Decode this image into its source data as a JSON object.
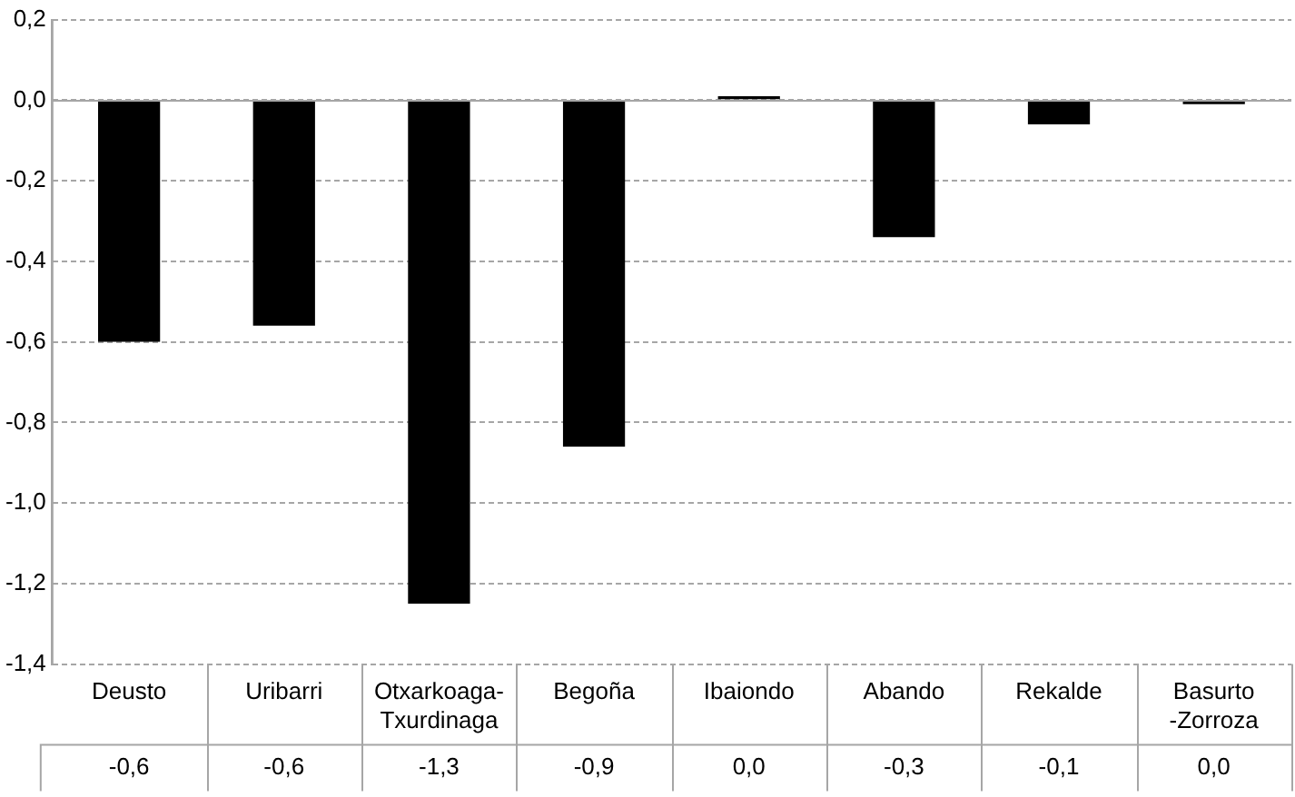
{
  "chart_data": {
    "type": "bar",
    "categories": [
      "Deusto",
      "Uribarri",
      "Otxarkoaga-Txurdinaga",
      "Begoña",
      "Ibaiondo",
      "Abando",
      "Rekalde",
      "Basurto -Zorroza"
    ],
    "values": [
      -0.6,
      -0.56,
      -1.25,
      -0.86,
      0.01,
      -0.34,
      -0.06,
      -0.01
    ],
    "value_labels": [
      "-0,6",
      "-0,6",
      "-1,3",
      "-0,9",
      "0,0",
      "-0,3",
      "-0,1",
      "0,0"
    ],
    "color": "#000000",
    "ylim": [
      -1.4,
      0.2
    ],
    "yticks": [
      {
        "value": 0.2,
        "label": "0,2"
      },
      {
        "value": 0,
        "label": "0,0"
      },
      {
        "value": -0.2,
        "label": "-0,2"
      },
      {
        "value": -0.4,
        "label": "-0,4"
      },
      {
        "value": -0.6,
        "label": "-0,6"
      },
      {
        "value": -0.8,
        "label": "-0,8"
      },
      {
        "value": -1,
        "label": "-1,0"
      },
      {
        "value": -1.2,
        "label": "-1,2"
      },
      {
        "value": -1.4,
        "label": "-1,4"
      }
    ],
    "grid": "y",
    "legend": false
  }
}
